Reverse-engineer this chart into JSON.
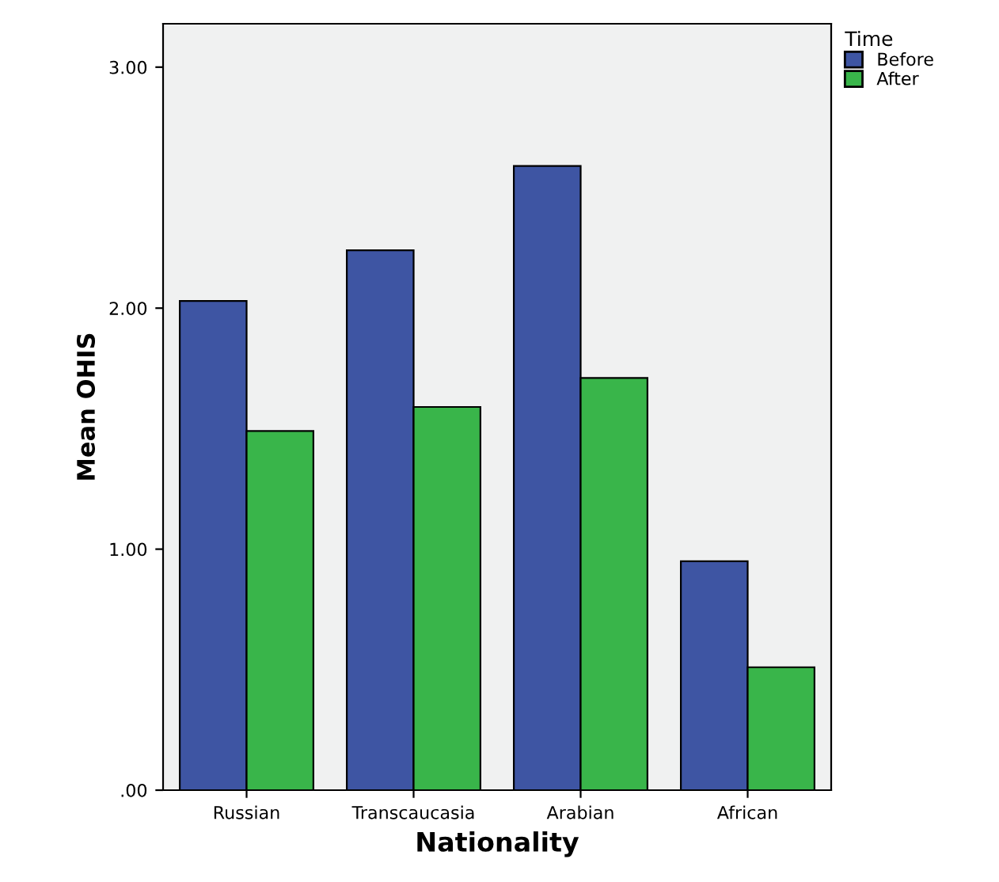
{
  "chart_data": {
    "type": "bar",
    "xlabel": "Nationality",
    "ylabel": "Mean OHIS",
    "legend_title": "Time",
    "categories": [
      "Russian",
      "Transcaucasia",
      "Arabian",
      "African"
    ],
    "series": [
      {
        "name": "Before",
        "color": "#3e55a3",
        "values": [
          2.03,
          2.24,
          2.59,
          0.95
        ]
      },
      {
        "name": "After",
        "color": "#39b54a",
        "values": [
          1.49,
          1.59,
          1.71,
          0.51
        ]
      }
    ],
    "ylim": [
      0,
      3.18
    ],
    "yticks": [
      {
        "value": 0,
        "label": ".00"
      },
      {
        "value": 1,
        "label": "1.00"
      },
      {
        "value": 2,
        "label": "2.00"
      },
      {
        "value": 3,
        "label": "3.00"
      }
    ],
    "legend": "top right",
    "grid": false
  }
}
